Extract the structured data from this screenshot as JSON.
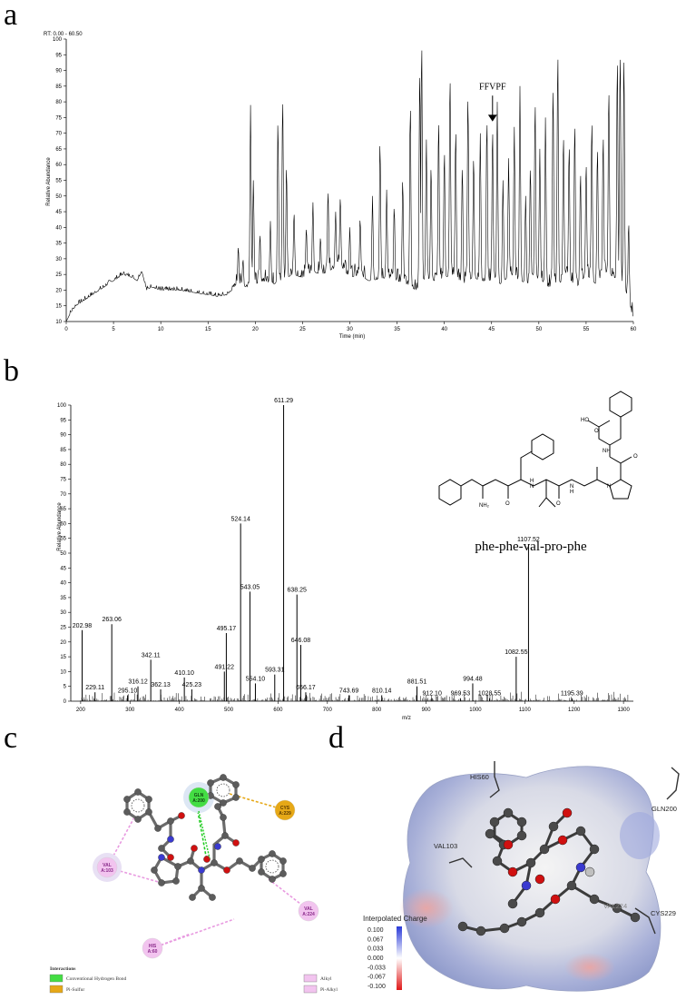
{
  "panels": {
    "a": "a",
    "b": "b",
    "c": "c",
    "d": "d"
  },
  "colors": {
    "trace": "#000000",
    "hbond_green": "#44dd44",
    "pi_sulfur": "#e6a817",
    "alkyl_pink": "#f2c4ef",
    "alkyl_line": "#e89ae0",
    "atom_gray": "#5c5c5c",
    "oxygen_red": "#d01010",
    "nitrogen_blue": "#3a3ad0",
    "surface_blue": "#4a5ed8",
    "surface_red": "#e11a1a"
  },
  "chart_data": [
    {
      "type": "line",
      "rt_range": "RT: 0.00 - 60.50",
      "xlabel": "Time (min)",
      "ylabel": "Relative Abundance",
      "xlim": [
        0,
        60
      ],
      "ylim": [
        10,
        100
      ],
      "xticks": [
        0,
        5,
        10,
        15,
        20,
        25,
        30,
        35,
        40,
        45,
        50,
        55,
        60
      ],
      "yticks": [
        10,
        15,
        20,
        25,
        30,
        35,
        40,
        45,
        50,
        55,
        60,
        65,
        70,
        75,
        80,
        85,
        90,
        95,
        100
      ],
      "annotation": {
        "text": "FFVPF",
        "x": 45.1,
        "y": 74
      },
      "grid": false,
      "baseline_points": [
        [
          0,
          10
        ],
        [
          0.5,
          13
        ],
        [
          1,
          15
        ],
        [
          2,
          17
        ],
        [
          3,
          19
        ],
        [
          4,
          21
        ],
        [
          5,
          23
        ],
        [
          6,
          25
        ],
        [
          7,
          24
        ],
        [
          7.5,
          23
        ],
        [
          8,
          26
        ],
        [
          8.5,
          20
        ],
        [
          9,
          21
        ],
        [
          10,
          20
        ],
        [
          11,
          20
        ],
        [
          12,
          20
        ],
        [
          13,
          19.5
        ],
        [
          14,
          19
        ],
        [
          15,
          18.5
        ],
        [
          16,
          18
        ],
        [
          17,
          18.5
        ],
        [
          17.5,
          20
        ],
        [
          18,
          22
        ],
        [
          19,
          21
        ],
        [
          21,
          23
        ],
        [
          22,
          22
        ],
        [
          24,
          25
        ],
        [
          25,
          24
        ],
        [
          26,
          26
        ],
        [
          27,
          25
        ],
        [
          29,
          28
        ],
        [
          30,
          24
        ],
        [
          31,
          25
        ],
        [
          32,
          23
        ],
        [
          34,
          24
        ],
        [
          35,
          23
        ],
        [
          36,
          22
        ],
        [
          37,
          20
        ],
        [
          38,
          24
        ],
        [
          39,
          23
        ],
        [
          40,
          24
        ],
        [
          41,
          25
        ],
        [
          42,
          22
        ],
        [
          43,
          24
        ],
        [
          44,
          23
        ],
        [
          45,
          23
        ],
        [
          46,
          22
        ],
        [
          47,
          25
        ],
        [
          48,
          23
        ],
        [
          49,
          22
        ],
        [
          50,
          24
        ],
        [
          51,
          21
        ],
        [
          52,
          22
        ],
        [
          53,
          24
        ],
        [
          54,
          21
        ],
        [
          55,
          25
        ],
        [
          56,
          22
        ],
        [
          57,
          26
        ],
        [
          58,
          24
        ],
        [
          59,
          22
        ],
        [
          60,
          11
        ]
      ],
      "peaks": [
        [
          18.2,
          34
        ],
        [
          18.7,
          30
        ],
        [
          19.5,
          79
        ],
        [
          19.8,
          55
        ],
        [
          20.5,
          38
        ],
        [
          21.6,
          42
        ],
        [
          22.4,
          75
        ],
        [
          22.9,
          82
        ],
        [
          23.3,
          60
        ],
        [
          24.1,
          45
        ],
        [
          25.4,
          40
        ],
        [
          26.1,
          48
        ],
        [
          26.9,
          37
        ],
        [
          27.7,
          52
        ],
        [
          28.5,
          45
        ],
        [
          29.0,
          50
        ],
        [
          30.0,
          40
        ],
        [
          31.1,
          43
        ],
        [
          32.4,
          50
        ],
        [
          33.2,
          68
        ],
        [
          33.9,
          52
        ],
        [
          34.7,
          47
        ],
        [
          35.6,
          56
        ],
        [
          36.4,
          80
        ],
        [
          37.4,
          91
        ],
        [
          37.6,
          100
        ],
        [
          38.1,
          68
        ],
        [
          38.6,
          60
        ],
        [
          39.4,
          75
        ],
        [
          40.0,
          65
        ],
        [
          40.6,
          89
        ],
        [
          41.2,
          72
        ],
        [
          41.9,
          60
        ],
        [
          42.5,
          83
        ],
        [
          43.1,
          63
        ],
        [
          43.8,
          70
        ],
        [
          44.5,
          75
        ],
        [
          45.1,
          72
        ],
        [
          45.6,
          80
        ],
        [
          46.2,
          55
        ],
        [
          46.8,
          62
        ],
        [
          47.4,
          72
        ],
        [
          48.0,
          85
        ],
        [
          48.6,
          50
        ],
        [
          49.1,
          60
        ],
        [
          49.6,
          81
        ],
        [
          50.1,
          65
        ],
        [
          50.7,
          75
        ],
        [
          51.5,
          86
        ],
        [
          52.0,
          97
        ],
        [
          52.6,
          70
        ],
        [
          53.2,
          67
        ],
        [
          53.8,
          74
        ],
        [
          54.4,
          58
        ],
        [
          55.0,
          61
        ],
        [
          55.6,
          75
        ],
        [
          56.2,
          66
        ],
        [
          56.8,
          70
        ],
        [
          57.4,
          85
        ],
        [
          58.3,
          95
        ],
        [
          58.6,
          97
        ],
        [
          59.0,
          96
        ],
        [
          59.5,
          42
        ]
      ]
    },
    {
      "type": "bar",
      "xlabel": "m/z",
      "ylabel": "Relative Abundance",
      "xlim": [
        180,
        1320
      ],
      "ylim": [
        0,
        100
      ],
      "xticks": [
        200,
        300,
        400,
        500,
        600,
        700,
        800,
        900,
        1000,
        1100,
        1200,
        1300
      ],
      "yticks": [
        0,
        5,
        10,
        15,
        20,
        25,
        30,
        35,
        40,
        45,
        50,
        55,
        60,
        65,
        70,
        75,
        80,
        85,
        90,
        95,
        100
      ],
      "labeled_peaks": [
        {
          "mz": 202.98,
          "label": "202.98",
          "i": 24
        },
        {
          "mz": 229.11,
          "label": "229.11",
          "i": 3
        },
        {
          "mz": 263.06,
          "label": "263.06",
          "i": 26
        },
        {
          "mz": 295.1,
          "label": "295.10",
          "i": 2
        },
        {
          "mz": 316.12,
          "label": "316.12",
          "i": 5
        },
        {
          "mz": 342.11,
          "label": "342.11",
          "i": 14
        },
        {
          "mz": 362.13,
          "label": "362.13",
          "i": 4
        },
        {
          "mz": 410.1,
          "label": "410.10",
          "i": 8
        },
        {
          "mz": 425.23,
          "label": "425.23",
          "i": 4
        },
        {
          "mz": 491.22,
          "label": "491.22",
          "i": 10
        },
        {
          "mz": 495.17,
          "label": "495.17",
          "i": 23
        },
        {
          "mz": 524.14,
          "label": "524.14",
          "i": 60
        },
        {
          "mz": 543.05,
          "label": "543.05",
          "i": 37
        },
        {
          "mz": 554.1,
          "label": "554.10",
          "i": 6
        },
        {
          "mz": 593.31,
          "label": "593.31",
          "i": 9
        },
        {
          "mz": 611.29,
          "label": "611.29",
          "i": 100
        },
        {
          "mz": 638.25,
          "label": "638.25",
          "i": 36
        },
        {
          "mz": 646.08,
          "label": "646.08",
          "i": 19
        },
        {
          "mz": 656.17,
          "label": "656.17",
          "i": 3
        },
        {
          "mz": 743.69,
          "label": "743.69",
          "i": 2
        },
        {
          "mz": 810.14,
          "label": "810.14",
          "i": 2
        },
        {
          "mz": 881.51,
          "label": "881.51",
          "i": 5
        },
        {
          "mz": 912.1,
          "label": "912.10",
          "i": 1
        },
        {
          "mz": 969.53,
          "label": "969.53",
          "i": 1
        },
        {
          "mz": 994.48,
          "label": "994.48",
          "i": 6
        },
        {
          "mz": 1028.55,
          "label": "1028.55",
          "i": 1
        },
        {
          "mz": 1082.55,
          "label": "1082.55",
          "i": 15
        },
        {
          "mz": 1107.52,
          "label": "1107.52",
          "i": 53
        },
        {
          "mz": 1195.39,
          "label": "1195.39",
          "i": 1
        }
      ],
      "structure_caption": "phe-phe-val-pro-phe",
      "structure_atoms": [
        "HO",
        "O",
        "NH",
        "O",
        "N",
        "N",
        "H",
        "O",
        "H",
        "N",
        "NH₂",
        "O"
      ]
    }
  ],
  "panel_c": {
    "residues": [
      {
        "id": "gln",
        "line1": "GLN",
        "line2": "A:200",
        "type": "hbond"
      },
      {
        "id": "cys",
        "line1": "CYS",
        "line2": "A:229",
        "type": "pisulfur"
      },
      {
        "id": "val103",
        "line1": "VAL",
        "line2": "A:103",
        "type": "alkyl"
      },
      {
        "id": "val224",
        "line1": "VAL",
        "line2": "A:224",
        "type": "alkyl"
      },
      {
        "id": "his",
        "line1": "HIS",
        "line2": "A:60",
        "type": "alkyl"
      }
    ],
    "legend": {
      "title": "Interactions",
      "items": [
        {
          "label": "Conventional Hydrogen Bond",
          "color": "#44dd44"
        },
        {
          "label": "Pi-Sulfur",
          "color": "#e6a817"
        },
        {
          "label": "Alkyl",
          "color": "#f2c4ef"
        },
        {
          "label": "Pi-Alkyl",
          "color": "#f2c4ef"
        }
      ]
    }
  },
  "panel_d": {
    "residue_labels": [
      "HIS60",
      "GLN200",
      "VAL103",
      "CYS229",
      "VAL224"
    ],
    "colorbar": {
      "title": "Interpolated Charge",
      "ticks": [
        "0.100",
        "0.067",
        "0.033",
        "0.000",
        "-0.033",
        "-0.067",
        "-0.100"
      ]
    }
  }
}
